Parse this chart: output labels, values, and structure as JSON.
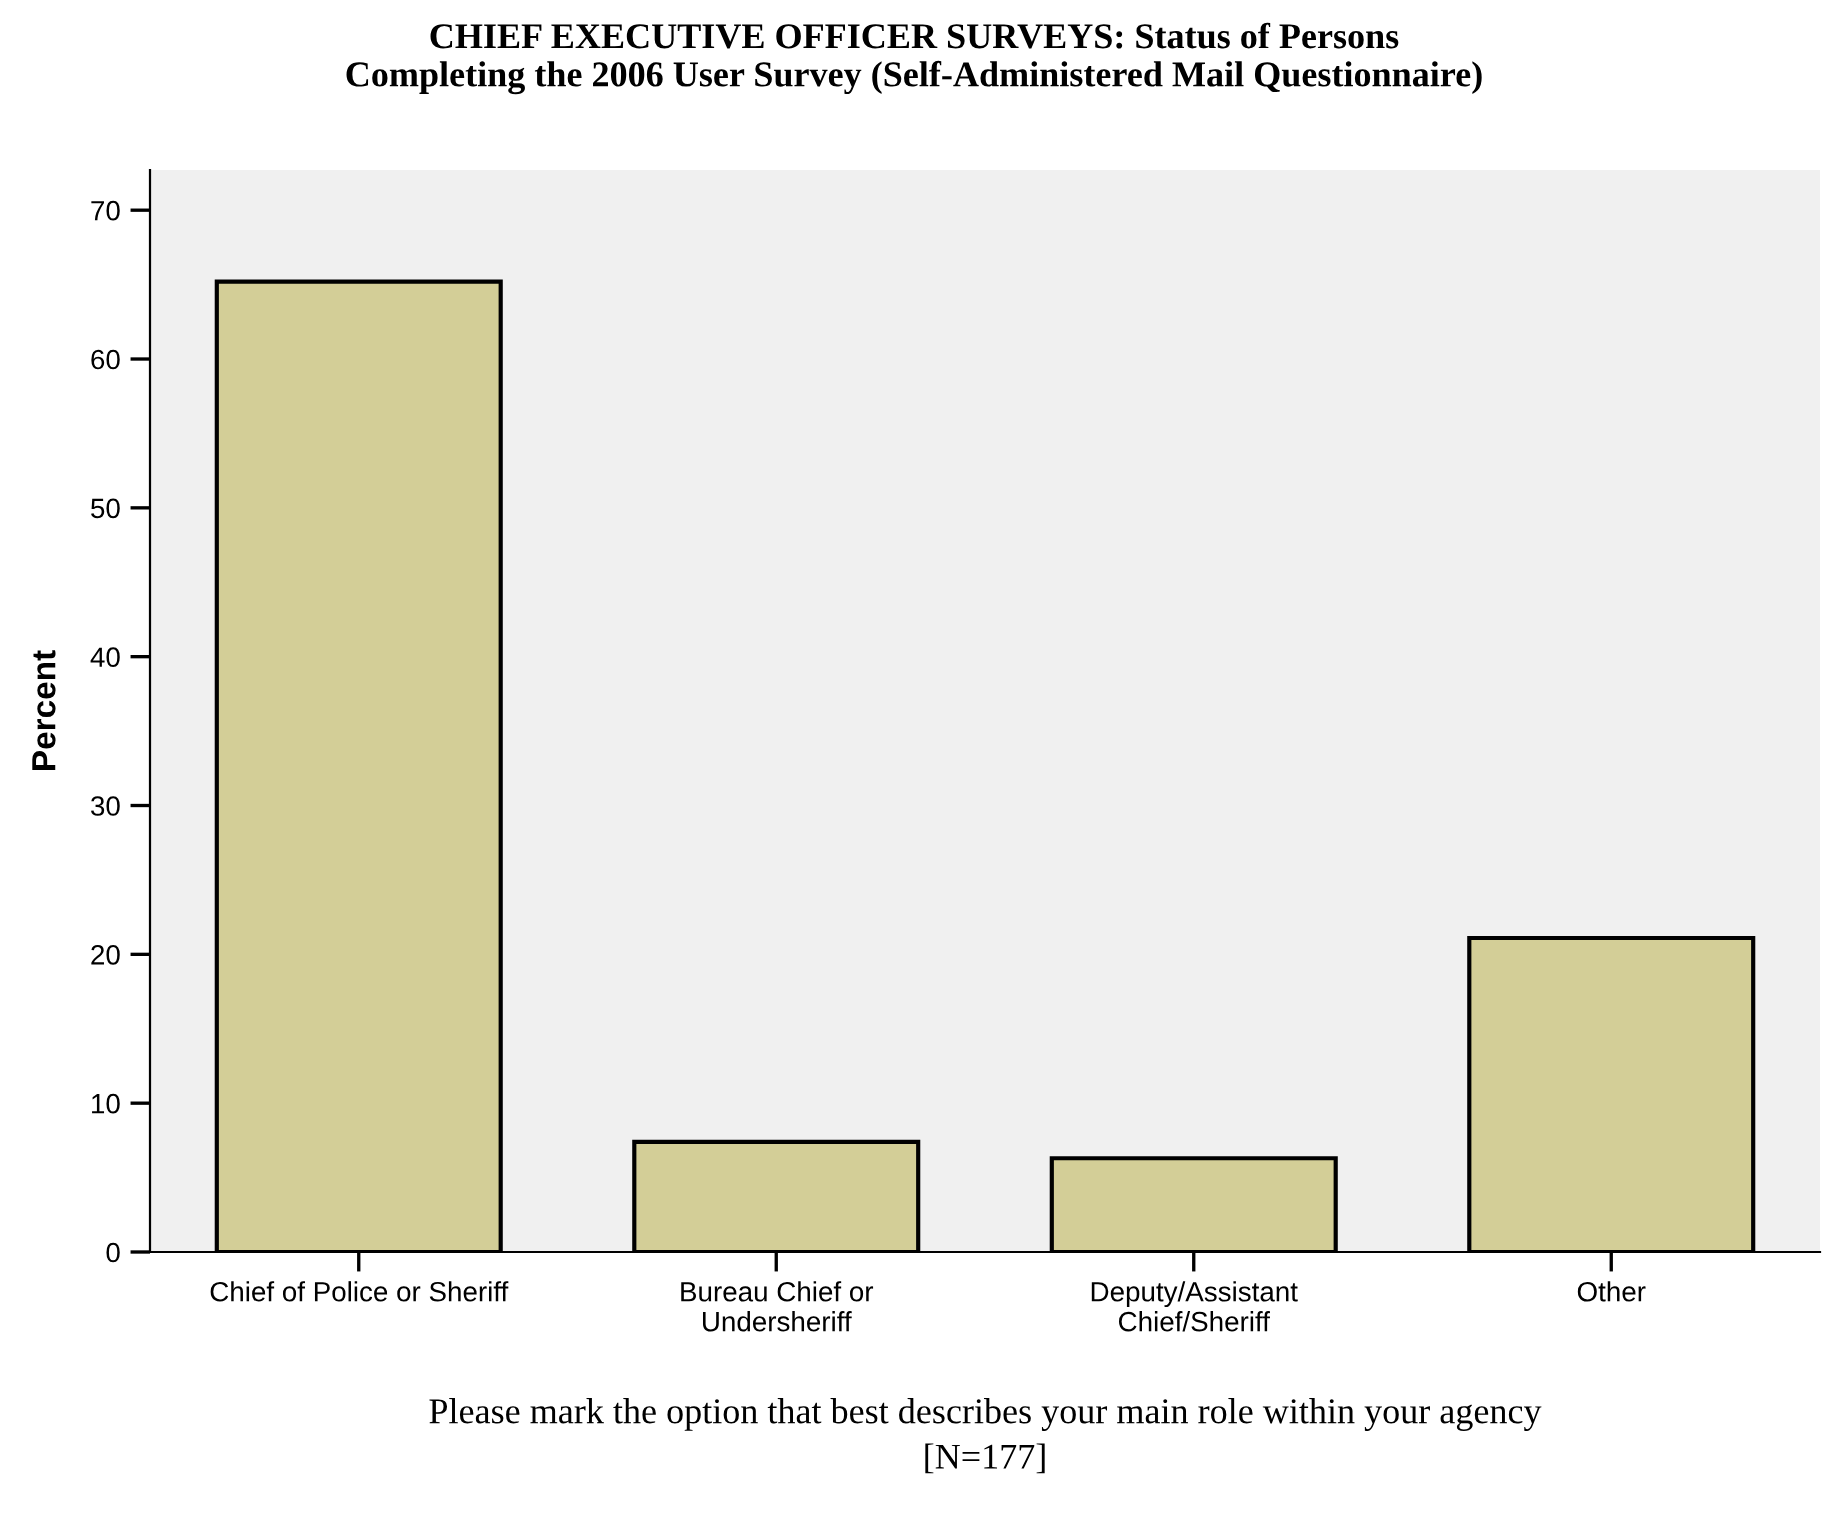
{
  "chart_data": {
    "type": "bar",
    "title": "CHIEF EXECUTIVE OFFICER SURVEYS: Status of Persons\nCompleting the 2006 User Survey (Self-Administered Mail Questionnaire)",
    "categories": [
      "Chief of Police or Sheriff",
      "Bureau Chief or\nUndersheriff",
      "Deputy/Assistant\nChief/Sheriff",
      "Other"
    ],
    "values": [
      65.2,
      7.4,
      6.3,
      21.1
    ],
    "color": "#d3ce97",
    "ylabel": "Percent",
    "xlabel": "Please mark the option that best describes your main role within your agency\n[N=177]",
    "ylim": [
      0,
      72.7
    ],
    "yticks": [
      0,
      10,
      20,
      30,
      40,
      50,
      60,
      70
    ],
    "grid": false
  }
}
